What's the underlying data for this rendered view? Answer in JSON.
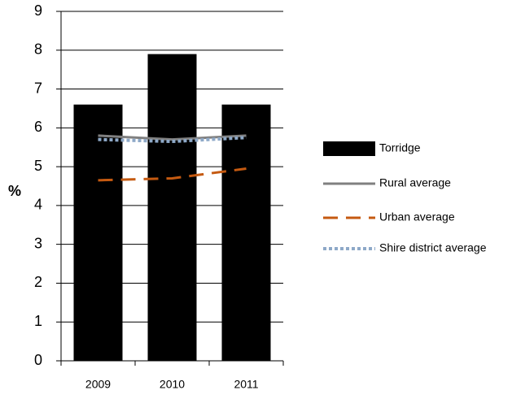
{
  "chart_data": {
    "type": "bar",
    "y_label": "%",
    "categories": [
      "2009",
      "2010",
      "2011"
    ],
    "series": [
      {
        "name": "Torridge",
        "type": "bar",
        "color": "#000000",
        "values": [
          6.6,
          7.9,
          6.6
        ]
      },
      {
        "name": "Rural average",
        "type": "line",
        "color": "#808080",
        "dash": "solid",
        "values": [
          5.8,
          5.7,
          5.8
        ]
      },
      {
        "name": "Urban average",
        "type": "line",
        "color": "#c55a11",
        "dash": "dashed",
        "values": [
          4.65,
          4.7,
          4.95
        ]
      },
      {
        "name": "Shire district average",
        "type": "line",
        "color": "#8ea9c8",
        "dash": "dotted",
        "values": [
          5.7,
          5.65,
          5.75
        ]
      }
    ],
    "ylim": [
      0,
      9
    ],
    "yticks": [
      0,
      1,
      2,
      3,
      4,
      5,
      6,
      7,
      8,
      9
    ],
    "grid": true,
    "legend": "right"
  }
}
